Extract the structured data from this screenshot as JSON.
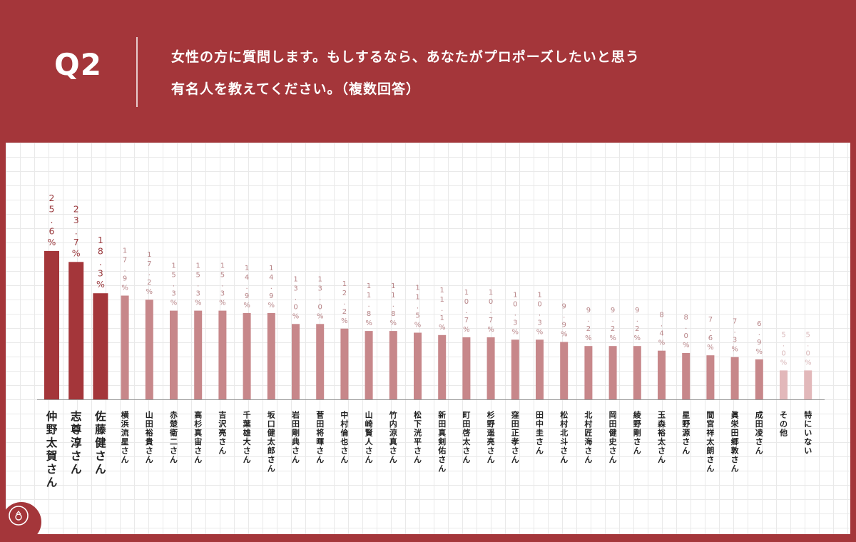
{
  "header": {
    "q_label": "Q2",
    "question_line1": "女性の方に質問します。もしするなら、あなたがプロポーズしたいと思う",
    "question_line2": "有名人を教えてください。（複数回答）"
  },
  "colors": {
    "background": "#a4363a",
    "bar_top3": "#a4363a",
    "bar_regular": "#c7878a",
    "bar_light": "#e2b8ba",
    "label_top3": "#9a3a3e",
    "label_regular": "#b88588",
    "label_light": "#d8b5b7"
  },
  "logo": {
    "icon": "ring-logo-icon"
  },
  "chart_data": {
    "type": "bar",
    "title": "",
    "xlabel": "",
    "ylabel": "",
    "ylim": [
      0,
      30
    ],
    "grid": true,
    "categories": [
      "仲野太賀さん",
      "志尊淳さん",
      "佐藤健さん",
      "横浜流星さん",
      "山田裕貴さん",
      "赤楚衛二さん",
      "高杉真宙さん",
      "吉沢亮さん",
      "千葉雄大さん",
      "坂口健太郎さん",
      "岩田剛典さん",
      "菅田将暉さん",
      "中村倫也さん",
      "山崎賢人さん",
      "竹内涼真さん",
      "松下洸平さん",
      "新田真剣佑さん",
      "町田啓太さん",
      "杉野遥亮さん",
      "窪田正孝さん",
      "田中圭さん",
      "松村北斗さん",
      "北村匠海さん",
      "岡田健史さん",
      "綾野剛さん",
      "玉森裕太さん",
      "星野源さん",
      "間宮祥太朗さん",
      "眞栄田郷敦さん",
      "成田凌さん",
      "その他",
      "特にいない"
    ],
    "values": [
      25.6,
      23.7,
      18.3,
      17.9,
      17.2,
      15.3,
      15.3,
      15.3,
      14.9,
      14.9,
      13.0,
      13.0,
      12.2,
      11.8,
      11.8,
      11.5,
      11.1,
      10.7,
      10.7,
      10.3,
      10.3,
      9.9,
      9.2,
      9.2,
      9.2,
      8.4,
      8.0,
      7.6,
      7.3,
      6.9,
      5.0,
      5.0
    ],
    "value_labels": [
      "25.6%",
      "23.7%",
      "18.3%",
      "17.9%",
      "17.2%",
      "15.3%",
      "15.3%",
      "15.3%",
      "14.9%",
      "14.9%",
      "13.0%",
      "13.0%",
      "12.2%",
      "11.8%",
      "11.8%",
      "11.5%",
      "11.1%",
      "10.7%",
      "10.7%",
      "10.3%",
      "10.3%",
      "9.9%",
      "9.2%",
      "9.2%",
      "9.2%",
      "8.4%",
      "8.0%",
      "7.6%",
      "7.3%",
      "6.9%",
      "5.0%",
      "5.0%"
    ]
  }
}
